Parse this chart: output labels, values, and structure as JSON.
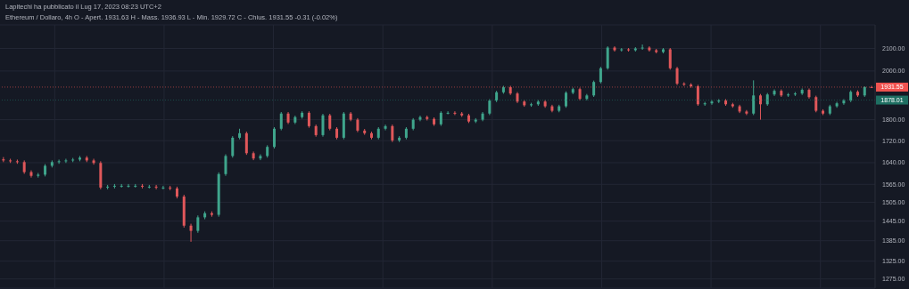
{
  "chart_data": {
    "type": "candlestick",
    "title": "Lapitechi ha pubblicato il Lug 17, 2023 08:23 UTC+2",
    "subtitle": "Ethereum / Dollaro, 4h  O - Apert. 1931.63  H - Mass. 1936.93  L - Min. 1929.72  C - Chius. 1931.55 -0.31 (-0.02%)",
    "categories": [
      null,
      null,
      null,
      null,
      null,
      null,
      null,
      null,
      null,
      null,
      null,
      null,
      null,
      null,
      null,
      null,
      null,
      null,
      null,
      null,
      null,
      null,
      null,
      null,
      null,
      null,
      null,
      null,
      null,
      null,
      null,
      null,
      null,
      null,
      null,
      null,
      null,
      null,
      null,
      null,
      null,
      null,
      null,
      null,
      null,
      null,
      null,
      null,
      null,
      null,
      null,
      null,
      null,
      null,
      null,
      null,
      null,
      null,
      null,
      null,
      null,
      null,
      null,
      null,
      null,
      null,
      null,
      null,
      null,
      null,
      null,
      null,
      null,
      null,
      null,
      null,
      null,
      null,
      null,
      null,
      null,
      null,
      null,
      null,
      null,
      null,
      null,
      null,
      null,
      null,
      null,
      null,
      null,
      null,
      null,
      null,
      null,
      null,
      null,
      null,
      null,
      null,
      null,
      null,
      null,
      null,
      null,
      null,
      null,
      null,
      null,
      null,
      null,
      null,
      null,
      null,
      null,
      null,
      null,
      null,
      null,
      null,
      null,
      null,
      null,
      null
    ],
    "ohlc": [
      [
        1652,
        1660,
        1642,
        1648
      ],
      [
        1648,
        1654,
        1639,
        1645
      ],
      [
        1645,
        1651,
        1636,
        1642
      ],
      [
        1642,
        1648,
        1601,
        1607
      ],
      [
        1607,
        1613,
        1588,
        1594
      ],
      [
        1594,
        1604,
        1588,
        1598
      ],
      [
        1598,
        1635,
        1592,
        1629
      ],
      [
        1629,
        1648,
        1623,
        1642
      ],
      [
        1642,
        1651,
        1636,
        1645
      ],
      [
        1645,
        1654,
        1639,
        1648
      ],
      [
        1648,
        1657,
        1642,
        1651
      ],
      [
        1651,
        1664,
        1645,
        1658
      ],
      [
        1658,
        1664,
        1642,
        1648
      ],
      [
        1648,
        1654,
        1633,
        1639
      ],
      [
        1639,
        1645,
        1548,
        1554
      ],
      [
        1554,
        1563,
        1548,
        1557
      ],
      [
        1557,
        1566,
        1551,
        1560
      ],
      [
        1560,
        1566,
        1554,
        1560
      ],
      [
        1560,
        1566,
        1554,
        1560
      ],
      [
        1560,
        1566,
        1554,
        1560
      ],
      [
        1560,
        1566,
        1551,
        1557
      ],
      [
        1557,
        1563,
        1551,
        1557
      ],
      [
        1557,
        1563,
        1548,
        1554
      ],
      [
        1554,
        1560,
        1548,
        1554
      ],
      [
        1554,
        1560,
        1545,
        1551
      ],
      [
        1551,
        1557,
        1518,
        1524
      ],
      [
        1524,
        1530,
        1425,
        1431
      ],
      [
        1431,
        1437,
        1382,
        1415
      ],
      [
        1415,
        1463,
        1409,
        1457
      ],
      [
        1457,
        1476,
        1451,
        1470
      ],
      [
        1470,
        1476,
        1459,
        1465
      ],
      [
        1465,
        1606,
        1459,
        1600
      ],
      [
        1600,
        1670,
        1594,
        1664
      ],
      [
        1664,
        1737,
        1658,
        1731
      ],
      [
        1731,
        1765,
        1725,
        1748
      ],
      [
        1748,
        1754,
        1668,
        1674
      ],
      [
        1674,
        1680,
        1649,
        1655
      ],
      [
        1655,
        1670,
        1649,
        1664
      ],
      [
        1664,
        1703,
        1658,
        1697
      ],
      [
        1697,
        1771,
        1691,
        1765
      ],
      [
        1765,
        1830,
        1759,
        1824
      ],
      [
        1824,
        1830,
        1783,
        1789
      ],
      [
        1789,
        1816,
        1783,
        1810
      ],
      [
        1810,
        1833,
        1804,
        1827
      ],
      [
        1827,
        1833,
        1769,
        1775
      ],
      [
        1775,
        1781,
        1735,
        1741
      ],
      [
        1741,
        1823,
        1735,
        1817
      ],
      [
        1817,
        1823,
        1759,
        1765
      ],
      [
        1765,
        1771,
        1725,
        1731
      ],
      [
        1731,
        1830,
        1725,
        1824
      ],
      [
        1824,
        1830,
        1794,
        1800
      ],
      [
        1800,
        1806,
        1752,
        1758
      ],
      [
        1758,
        1764,
        1742,
        1748
      ],
      [
        1748,
        1754,
        1725,
        1731
      ],
      [
        1731,
        1771,
        1725,
        1765
      ],
      [
        1765,
        1781,
        1759,
        1775
      ],
      [
        1775,
        1781,
        1715,
        1721
      ],
      [
        1721,
        1737,
        1715,
        1731
      ],
      [
        1731,
        1771,
        1725,
        1765
      ],
      [
        1765,
        1806,
        1759,
        1800
      ],
      [
        1800,
        1816,
        1794,
        1810
      ],
      [
        1810,
        1816,
        1797,
        1803
      ],
      [
        1803,
        1809,
        1776,
        1782
      ],
      [
        1782,
        1833,
        1776,
        1827
      ],
      [
        1827,
        1833,
        1821,
        1827
      ],
      [
        1827,
        1833,
        1818,
        1824
      ],
      [
        1824,
        1830,
        1811,
        1817
      ],
      [
        1817,
        1823,
        1787,
        1793
      ],
      [
        1793,
        1806,
        1787,
        1800
      ],
      [
        1800,
        1830,
        1794,
        1824
      ],
      [
        1824,
        1882,
        1818,
        1876
      ],
      [
        1876,
        1916,
        1870,
        1910
      ],
      [
        1910,
        1937,
        1904,
        1931
      ],
      [
        1931,
        1937,
        1899,
        1905
      ],
      [
        1905,
        1911,
        1866,
        1872
      ],
      [
        1872,
        1878,
        1851,
        1857
      ],
      [
        1857,
        1867,
        1851,
        1861
      ],
      [
        1861,
        1878,
        1855,
        1872
      ],
      [
        1872,
        1878,
        1847,
        1853
      ],
      [
        1853,
        1859,
        1829,
        1835
      ],
      [
        1835,
        1859,
        1829,
        1853
      ],
      [
        1853,
        1914,
        1847,
        1908
      ],
      [
        1908,
        1929,
        1902,
        1923
      ],
      [
        1923,
        1929,
        1877,
        1883
      ],
      [
        1883,
        1903,
        1877,
        1897
      ],
      [
        1897,
        1959,
        1891,
        1953
      ],
      [
        1953,
        2018,
        1947,
        2012
      ],
      [
        2012,
        2110,
        2006,
        2104
      ],
      [
        2104,
        2110,
        2086,
        2092
      ],
      [
        2092,
        2102,
        2086,
        2096
      ],
      [
        2096,
        2102,
        2086,
        2092
      ],
      [
        2092,
        2106,
        2086,
        2100
      ],
      [
        2100,
        2118,
        2094,
        2104
      ],
      [
        2104,
        2110,
        2086,
        2092
      ],
      [
        2092,
        2098,
        2078,
        2084
      ],
      [
        2084,
        2102,
        2078,
        2096
      ],
      [
        2096,
        2102,
        2006,
        2012
      ],
      [
        2012,
        2018,
        1940,
        1946
      ],
      [
        1946,
        1952,
        1936,
        1942
      ],
      [
        1942,
        1948,
        1929,
        1935
      ],
      [
        1935,
        1941,
        1855,
        1861
      ],
      [
        1861,
        1871,
        1855,
        1865
      ],
      [
        1865,
        1878,
        1859,
        1872
      ],
      [
        1872,
        1882,
        1866,
        1876
      ],
      [
        1876,
        1882,
        1855,
        1861
      ],
      [
        1861,
        1867,
        1847,
        1853
      ],
      [
        1853,
        1859,
        1826,
        1832
      ],
      [
        1832,
        1838,
        1818,
        1824
      ],
      [
        1824,
        1960,
        1818,
        1897
      ],
      [
        1897,
        1903,
        1800,
        1861
      ],
      [
        1861,
        1907,
        1855,
        1901
      ],
      [
        1901,
        1922,
        1895,
        1916
      ],
      [
        1916,
        1922,
        1891,
        1897
      ],
      [
        1897,
        1907,
        1891,
        1901
      ],
      [
        1901,
        1911,
        1895,
        1905
      ],
      [
        1905,
        1926,
        1899,
        1920
      ],
      [
        1920,
        1926,
        1884,
        1890
      ],
      [
        1890,
        1896,
        1829,
        1835
      ],
      [
        1835,
        1841,
        1818,
        1824
      ],
      [
        1824,
        1859,
        1818,
        1853
      ],
      [
        1853,
        1871,
        1847,
        1865
      ],
      [
        1865,
        1882,
        1859,
        1876
      ],
      [
        1876,
        1918,
        1870,
        1912
      ],
      [
        1912,
        1918,
        1891,
        1897
      ],
      [
        1897,
        1935,
        1891,
        1931.63
      ],
      [
        1931.63,
        1936.93,
        1929.72,
        1931.55
      ]
    ],
    "ylim": [
      1250,
      2210
    ],
    "log": true,
    "yticks": [
      {
        "value": 1275,
        "label": "1275.00"
      },
      {
        "value": 1325,
        "label": "1325.00"
      },
      {
        "value": 1385,
        "label": "1385.00"
      },
      {
        "value": 1445,
        "label": "1445.00"
      },
      {
        "value": 1505,
        "label": "1505.00"
      },
      {
        "value": 1565,
        "label": "1565.00"
      },
      {
        "value": 1640,
        "label": "1640.00"
      },
      {
        "value": 1720,
        "label": "1720.00"
      },
      {
        "value": 1800,
        "label": "1800.00"
      },
      {
        "value": 2000,
        "label": "2000.00"
      },
      {
        "value": 2100,
        "label": "2100.00"
      }
    ],
    "ref_lines": [
      {
        "axis": "y",
        "value": 1931.55,
        "label": "1931.55",
        "color": "#f05350",
        "line_style": "dotted"
      },
      {
        "axis": "y",
        "value": 1878.01,
        "label": "1878.01",
        "color": "#1e6f62",
        "line_style": "dotted"
      }
    ],
    "grid": true
  }
}
